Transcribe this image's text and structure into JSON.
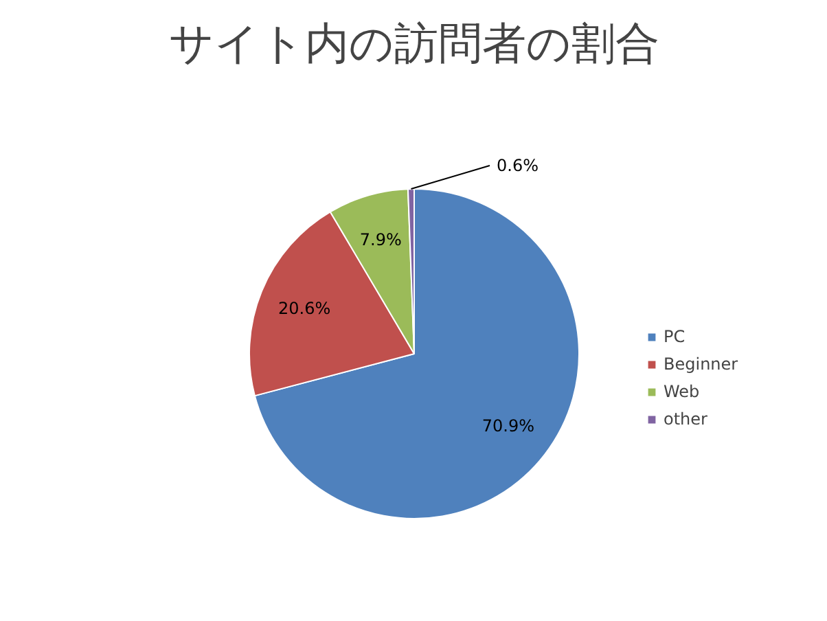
{
  "chart_data": {
    "type": "pie",
    "title": "サイト内の訪問者の割合",
    "categories": [
      "PC",
      "Beginner",
      "Web",
      "other"
    ],
    "values": [
      70.9,
      20.6,
      7.9,
      0.6
    ],
    "colors": [
      "#4f81bd",
      "#c0504d",
      "#9bbb59",
      "#8064a2"
    ],
    "value_labels": [
      "70.9%",
      "20.6%",
      "7.9%",
      "0.6%"
    ],
    "legend": "right"
  }
}
